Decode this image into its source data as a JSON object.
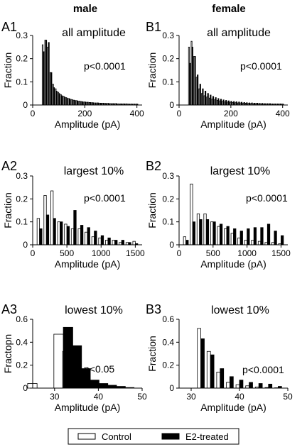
{
  "columns": [
    "male",
    "female"
  ],
  "legend": {
    "items": [
      "Control",
      "E2-treated"
    ],
    "placement": "bottom-center"
  },
  "colors": {
    "control": "#ffffff",
    "e2": "#000000",
    "axis": "#000000"
  },
  "chart_data": [
    {
      "panel": "A1",
      "type": "bar",
      "title": "all amplitude",
      "pvalue": "p<0.0001",
      "xlabel": "Amplitude (pA)",
      "ylabel": "Fraction",
      "xlim": [
        0,
        420
      ],
      "ylim": [
        0,
        0.3
      ],
      "xticks": [
        0,
        200,
        400
      ],
      "yticks": [
        0,
        0.1,
        0.2,
        0.3
      ],
      "x": [
        40,
        50,
        60,
        70,
        80,
        90,
        100,
        110,
        120,
        130,
        140,
        150,
        160,
        170,
        180,
        190,
        200,
        210,
        220,
        230,
        240,
        250,
        260,
        270,
        280,
        290,
        300,
        310,
        320,
        330,
        340,
        350,
        360,
        370,
        380,
        390,
        400
      ],
      "series": [
        {
          "name": "Control",
          "values": [
            0.26,
            0.28,
            0.25,
            0.14,
            0.09,
            0.07,
            0.055,
            0.045,
            0.038,
            0.032,
            0.028,
            0.024,
            0.021,
            0.019,
            0.017,
            0.015,
            0.013,
            0.012,
            0.011,
            0.01,
            0.009,
            0.009,
            0.008,
            0.008,
            0.007,
            0.007,
            0.006,
            0.006,
            0.006,
            0.005,
            0.005,
            0.005,
            0.005,
            0.004,
            0.004,
            0.004,
            0.004
          ]
        },
        {
          "name": "E2-treated",
          "values": [
            0.23,
            0.28,
            0.27,
            0.14,
            0.075,
            0.06,
            0.05,
            0.04,
            0.035,
            0.03,
            0.027,
            0.023,
            0.02,
            0.018,
            0.016,
            0.014,
            0.013,
            0.012,
            0.011,
            0.01,
            0.009,
            0.009,
            0.008,
            0.008,
            0.007,
            0.007,
            0.006,
            0.006,
            0.006,
            0.005,
            0.005,
            0.005,
            0.005,
            0.004,
            0.004,
            0.004,
            0.004
          ]
        }
      ]
    },
    {
      "panel": "B1",
      "type": "bar",
      "title": "all amplitude",
      "pvalue": "p<0.0001",
      "xlabel": "Amplitude (pA)",
      "ylabel": "Fraction",
      "xlim": [
        0,
        420
      ],
      "ylim": [
        0,
        0.3
      ],
      "xticks": [
        0,
        200,
        400
      ],
      "yticks": [
        0,
        0.1,
        0.2,
        0.3
      ],
      "x": [
        40,
        50,
        60,
        70,
        80,
        90,
        100,
        110,
        120,
        130,
        140,
        150,
        160,
        170,
        180,
        190,
        200,
        210,
        220,
        230,
        240,
        250,
        260,
        270,
        280,
        290,
        300,
        310,
        320,
        330,
        340,
        350,
        360,
        370,
        380,
        390,
        400
      ],
      "series": [
        {
          "name": "Control",
          "values": [
            0.25,
            0.275,
            0.21,
            0.12,
            0.07,
            0.05,
            0.04,
            0.035,
            0.03,
            0.026,
            0.023,
            0.02,
            0.018,
            0.016,
            0.014,
            0.013,
            0.012,
            0.011,
            0.01,
            0.009,
            0.009,
            0.008,
            0.008,
            0.007,
            0.007,
            0.006,
            0.006,
            0.006,
            0.005,
            0.005,
            0.005,
            0.005,
            0.004,
            0.004,
            0.004,
            0.004,
            0.004
          ]
        },
        {
          "name": "E2-treated",
          "values": [
            0.18,
            0.25,
            0.21,
            0.13,
            0.09,
            0.07,
            0.06,
            0.05,
            0.043,
            0.037,
            0.032,
            0.028,
            0.025,
            0.022,
            0.02,
            0.018,
            0.016,
            0.015,
            0.014,
            0.013,
            0.012,
            0.011,
            0.01,
            0.009,
            0.009,
            0.008,
            0.008,
            0.007,
            0.007,
            0.006,
            0.006,
            0.006,
            0.005,
            0.005,
            0.005,
            0.005,
            0.004
          ]
        }
      ]
    },
    {
      "panel": "A2",
      "type": "bar",
      "title": "largest 10%",
      "pvalue": "p<0.0001",
      "xlabel": "Amplitude (pA)",
      "ylabel": "Fraction",
      "xlim": [
        0,
        1600
      ],
      "ylim": [
        0,
        0.3
      ],
      "xticks": [
        0,
        500,
        1000,
        1500
      ],
      "yticks": [
        0,
        0.1,
        0.2,
        0.3
      ],
      "x": [
        100,
        200,
        300,
        400,
        500,
        600,
        700,
        800,
        900,
        1000,
        1100,
        1200,
        1300,
        1400,
        1500
      ],
      "series": [
        {
          "name": "Control",
          "values": [
            0.115,
            0.215,
            0.235,
            0.1,
            0.09,
            0.07,
            0.07,
            0.055,
            0.035,
            0.03,
            0.02,
            0.02,
            0.01,
            0.01,
            0.015
          ]
        },
        {
          "name": "E2-treated",
          "values": [
            0.07,
            0.13,
            0.115,
            0.1,
            0.08,
            0.15,
            0.085,
            0.075,
            0.06,
            0.04,
            0.03,
            0.02,
            0.02,
            0.01,
            0.005
          ]
        }
      ]
    },
    {
      "panel": "B2",
      "type": "bar",
      "title": "largest 10%",
      "pvalue": "p<0.0001",
      "xlabel": "Amplitude (pA)",
      "ylabel": "Fraction",
      "xlim": [
        0,
        1600
      ],
      "ylim": [
        0,
        0.3
      ],
      "xticks": [
        0,
        500,
        1000,
        1500
      ],
      "yticks": [
        0,
        0.1,
        0.2,
        0.3
      ],
      "x": [
        100,
        200,
        300,
        400,
        500,
        600,
        700,
        800,
        900,
        1000,
        1100,
        1200,
        1300,
        1400,
        1500
      ],
      "series": [
        {
          "name": "Control",
          "values": [
            0.035,
            0.265,
            0.135,
            0.135,
            0.1,
            0.08,
            0.07,
            0.05,
            0.03,
            0.02,
            0.02,
            0.015,
            0.01,
            0.01,
            0.005
          ]
        },
        {
          "name": "E2-treated",
          "values": [
            0.02,
            0.1,
            0.11,
            0.11,
            0.1,
            0.09,
            0.08,
            0.07,
            0.06,
            0.07,
            0.075,
            0.075,
            0.09,
            0.06,
            0.04
          ]
        }
      ]
    },
    {
      "panel": "A3",
      "type": "bar",
      "title": "lowest 10%",
      "pvalue": "p<0.05",
      "xlabel": "Amplitude (pA)",
      "ylabel": "Fractopn",
      "xlim": [
        25,
        50
      ],
      "ylim": [
        0,
        0.6
      ],
      "xticks": [
        30,
        40,
        50
      ],
      "yticks": [
        0,
        0.2,
        0.4,
        0.6
      ],
      "x": [
        26,
        32,
        34,
        36,
        38,
        40,
        42,
        44,
        46
      ],
      "series": [
        {
          "name": "Control",
          "values": [
            0.04,
            0.47,
            0.32,
            0.1,
            0.06,
            0.03,
            0.01,
            0.01,
            0.005
          ]
        },
        {
          "name": "E2-treated",
          "values": [
            0,
            0.53,
            0.37,
            0.17,
            0.07,
            0.04,
            0.025,
            0.015,
            0.005
          ]
        }
      ]
    },
    {
      "panel": "B3",
      "type": "bar",
      "title": "lowest 10%",
      "pvalue": "p<0.0001",
      "xlabel": "Amplitude (pA)",
      "ylabel": "Fraction",
      "xlim": [
        27.5,
        50
      ],
      "ylim": [
        0,
        0.6
      ],
      "xticks": [
        30,
        40,
        50
      ],
      "yticks": [
        0,
        0.2,
        0.4,
        0.6
      ],
      "x": [
        32,
        34,
        36,
        38,
        40,
        42,
        44,
        46,
        48
      ],
      "series": [
        {
          "name": "Control",
          "values": [
            0.52,
            0.32,
            0.14,
            0.05,
            0.03,
            0.02,
            0.01,
            0.005,
            0.003
          ]
        },
        {
          "name": "E2-treated",
          "values": [
            0.43,
            0.29,
            0.17,
            0.1,
            0.07,
            0.05,
            0.04,
            0.035,
            0.015
          ]
        }
      ]
    }
  ]
}
